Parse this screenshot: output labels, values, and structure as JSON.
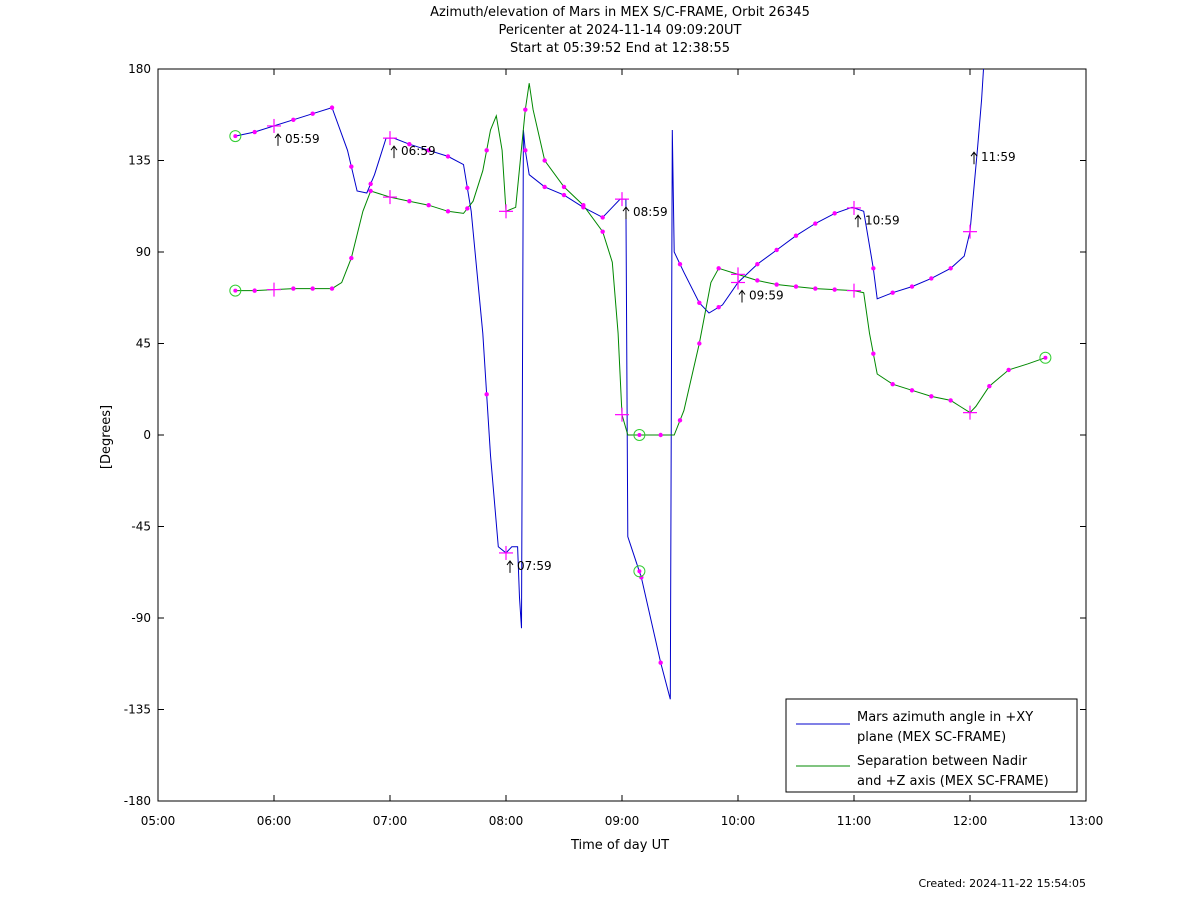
{
  "chart_data": {
    "type": "line",
    "title": "Azimuth/elevation of Mars in MEX S/C-FRAME,  Orbit 26345",
    "subtitle_1": "Pericenter at 2024-11-14 09:09:20UT",
    "subtitle_2": "Start at 05:39:52 End at 12:38:55",
    "xlabel": "Time of day UT",
    "ylabel": "[Degrees]",
    "xlim": [
      "05:00",
      "13:00"
    ],
    "ylim": [
      -180,
      180
    ],
    "x_ticks": [
      "05:00",
      "06:00",
      "07:00",
      "08:00",
      "09:00",
      "10:00",
      "11:00",
      "12:00",
      "13:00"
    ],
    "y_ticks": [
      "180",
      "135",
      "90",
      "45",
      "0",
      "-45",
      "-90",
      "-135",
      "-180"
    ],
    "grid": false,
    "legend_position": "bottom-right",
    "colors": {
      "azimuth": "#0000cc",
      "separation": "#008800",
      "markers": "#ff00ff",
      "endpoints": "#33cc33"
    },
    "series": [
      {
        "name_line1": "Mars azimuth angle in +XY",
        "name_line2": "plane (MEX SC-FRAME)",
        "color": "#0000cc",
        "points": [
          [
            "05:40",
            147
          ],
          [
            "05:50",
            149
          ],
          [
            "06:00",
            152
          ],
          [
            "06:10",
            155
          ],
          [
            "06:20",
            158
          ],
          [
            "06:30",
            161
          ],
          [
            "06:38",
            140
          ],
          [
            "06:43",
            120
          ],
          [
            "06:48",
            119
          ],
          [
            "06:52",
            128
          ],
          [
            "06:58",
            146
          ],
          [
            "07:02",
            146
          ],
          [
            "07:10",
            143
          ],
          [
            "07:20",
            140
          ],
          [
            "07:30",
            137
          ],
          [
            "07:38",
            133
          ],
          [
            "07:42",
            110
          ],
          [
            "07:48",
            50
          ],
          [
            "07:52",
            -10
          ],
          [
            "07:56",
            -55
          ],
          [
            "08:00",
            -58
          ],
          [
            "08:03",
            -55
          ],
          [
            "08:06",
            -55
          ],
          [
            "08:07",
            -80
          ],
          [
            "08:08",
            -95
          ],
          [
            "08:09",
            150
          ],
          [
            "08:10",
            140
          ],
          [
            "08:12",
            128
          ],
          [
            "08:20",
            122
          ],
          [
            "08:30",
            118
          ],
          [
            "08:40",
            112
          ],
          [
            "08:50",
            107
          ],
          [
            "08:55",
            112
          ],
          [
            "08:59",
            116
          ],
          [
            "09:02",
            116
          ],
          [
            "09:03",
            -50
          ],
          [
            "09:10",
            -70
          ],
          [
            "09:20",
            -112
          ],
          [
            "09:25",
            -130
          ],
          [
            "09:26",
            150
          ],
          [
            "09:27",
            90
          ],
          [
            "09:32",
            80
          ],
          [
            "09:40",
            65
          ],
          [
            "09:45",
            60
          ],
          [
            "09:52",
            64
          ],
          [
            "10:00",
            75
          ],
          [
            "10:10",
            84
          ],
          [
            "10:20",
            91
          ],
          [
            "10:30",
            98
          ],
          [
            "10:40",
            104
          ],
          [
            "10:50",
            109
          ],
          [
            "10:59",
            112
          ],
          [
            "11:05",
            110
          ],
          [
            "11:10",
            82
          ],
          [
            "11:12",
            67
          ],
          [
            "11:20",
            70
          ],
          [
            "11:30",
            73
          ],
          [
            "11:40",
            77
          ],
          [
            "11:50",
            82
          ],
          [
            "11:57",
            88
          ],
          [
            "12:00",
            100
          ],
          [
            "12:04",
            142
          ],
          [
            "12:06",
            165
          ],
          [
            "12:07",
            180
          ]
        ],
        "markers": [
          "05:50",
          "06:10",
          "06:20",
          "06:30",
          "06:40",
          "06:50",
          "07:10",
          "07:20",
          "07:30",
          "07:40",
          "07:50",
          "08:10",
          "08:20",
          "08:30",
          "08:40",
          "08:50",
          "09:10",
          "09:20",
          "09:30",
          "09:40",
          "09:50",
          "10:10",
          "10:20",
          "10:30",
          "10:40",
          "10:50",
          "11:10",
          "11:20",
          "11:30",
          "11:40",
          "11:50"
        ],
        "hour_crosses": [
          "06:00",
          "07:00",
          "08:00",
          "09:00",
          "10:00",
          "11:00",
          "12:00"
        ]
      },
      {
        "name_line1": "Separation between Nadir",
        "name_line2": "and +Z axis (MEX SC-FRAME)",
        "color": "#008800",
        "points": [
          [
            "05:40",
            71
          ],
          [
            "05:50",
            71
          ],
          [
            "06:00",
            71.5
          ],
          [
            "06:10",
            72
          ],
          [
            "06:20",
            72
          ],
          [
            "06:30",
            72
          ],
          [
            "06:35",
            75
          ],
          [
            "06:40",
            87
          ],
          [
            "06:46",
            110
          ],
          [
            "06:50",
            120
          ],
          [
            "07:00",
            117
          ],
          [
            "07:10",
            115
          ],
          [
            "07:20",
            113
          ],
          [
            "07:30",
            110
          ],
          [
            "07:38",
            109
          ],
          [
            "07:43",
            115
          ],
          [
            "07:48",
            130
          ],
          [
            "07:52",
            150
          ],
          [
            "07:55",
            157
          ],
          [
            "07:58",
            140
          ],
          [
            "08:00",
            110
          ],
          [
            "08:05",
            112
          ],
          [
            "08:10",
            160
          ],
          [
            "08:12",
            173
          ],
          [
            "08:14",
            160
          ],
          [
            "08:20",
            135
          ],
          [
            "08:30",
            122
          ],
          [
            "08:40",
            113
          ],
          [
            "08:50",
            100
          ],
          [
            "08:55",
            85
          ],
          [
            "08:58",
            50
          ],
          [
            "09:00",
            10
          ],
          [
            "09:03",
            0
          ],
          [
            "09:09",
            0
          ],
          [
            "09:20",
            0
          ],
          [
            "09:27",
            0
          ],
          [
            "09:32",
            12
          ],
          [
            "09:40",
            45
          ],
          [
            "09:46",
            75
          ],
          [
            "09:50",
            82
          ],
          [
            "10:00",
            79
          ],
          [
            "10:10",
            76
          ],
          [
            "10:20",
            74
          ],
          [
            "10:30",
            73
          ],
          [
            "10:40",
            72
          ],
          [
            "10:50",
            71.5
          ],
          [
            "11:00",
            71
          ],
          [
            "11:05",
            70
          ],
          [
            "11:08",
            50
          ],
          [
            "11:12",
            30
          ],
          [
            "11:20",
            25
          ],
          [
            "11:30",
            22
          ],
          [
            "11:40",
            19
          ],
          [
            "11:50",
            17
          ],
          [
            "11:55",
            14
          ],
          [
            "12:00",
            11
          ],
          [
            "12:03",
            14
          ],
          [
            "12:10",
            24
          ],
          [
            "12:20",
            32
          ],
          [
            "12:30",
            35
          ],
          [
            "12:39",
            38
          ]
        ],
        "markers": [
          "05:50",
          "06:10",
          "06:20",
          "06:30",
          "06:40",
          "06:50",
          "07:10",
          "07:20",
          "07:30",
          "07:40",
          "07:50",
          "08:10",
          "08:20",
          "08:30",
          "08:40",
          "08:50",
          "09:20",
          "09:30",
          "09:40",
          "09:50",
          "10:10",
          "10:20",
          "10:30",
          "10:40",
          "10:50",
          "11:10",
          "11:20",
          "11:30",
          "11:40",
          "11:50",
          "12:10",
          "12:20"
        ],
        "hour_crosses": [
          "06:00",
          "07:00",
          "08:00",
          "09:00",
          "10:00",
          "11:00",
          "12:00"
        ]
      }
    ],
    "endpoint_circles": [
      {
        "x": "05:40",
        "y": 147
      },
      {
        "x": "05:40",
        "y": 71
      },
      {
        "x": "09:09",
        "y": 0
      },
      {
        "x": "09:09",
        "y": -67
      },
      {
        "x": "12:39",
        "y": 38
      }
    ],
    "annotations": [
      {
        "text": "05:59",
        "x": "06:00",
        "y": 152
      },
      {
        "text": "06:59",
        "x": "07:00",
        "y": 146
      },
      {
        "text": "07:59",
        "x": "08:00",
        "y": -58
      },
      {
        "text": "08:59",
        "x": "09:00",
        "y": 116
      },
      {
        "text": "09:59",
        "x": "10:00",
        "y": 75
      },
      {
        "text": "10:59",
        "x": "11:00",
        "y": 112
      },
      {
        "text": "11:59",
        "x": "12:00",
        "y": 143
      }
    ]
  },
  "footer": {
    "created": "Created: 2024-11-22 15:54:05"
  }
}
